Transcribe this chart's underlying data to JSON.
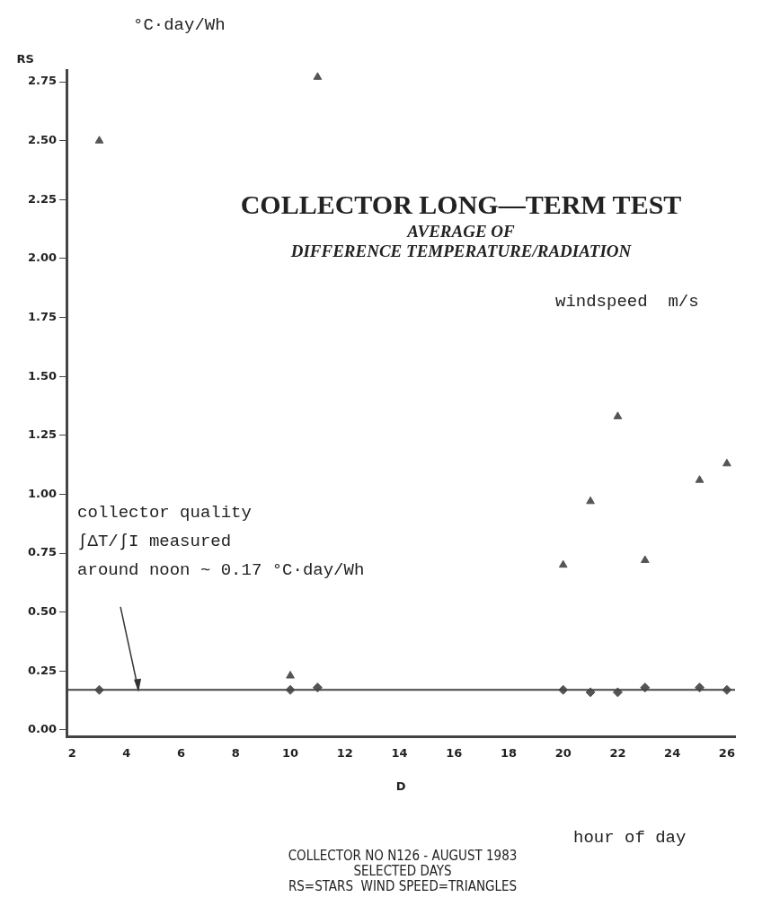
{
  "chart_data": {
    "type": "scatter",
    "title": "COLLECTOR LONG—TERM TEST",
    "subtitle": "AVERAGE OF\nDIFFERENCE TEMPERATURE/RADIATION",
    "xlabel": "D",
    "ylabel": "RS",
    "x": [
      3,
      10,
      11,
      20,
      21,
      22,
      23,
      25,
      26
    ],
    "series": [
      {
        "marker": "diamond",
        "color": "#555555",
        "values": [
          0.17,
          0.17,
          0.18,
          0.17,
          0.16,
          0.16,
          0.18,
          0.18,
          0.17
        ]
      },
      {
        "marker": "triangle",
        "color": "#555555",
        "values": [
          2.5,
          0.23,
          2.77,
          0.7,
          0.97,
          1.33,
          0.72,
          1.06,
          1.13
        ]
      }
    ],
    "xlim": [
      1.8,
      26.3
    ],
    "xticks": [
      2,
      4,
      6,
      8,
      10,
      12,
      14,
      16,
      18,
      20,
      22,
      24,
      26
    ],
    "ylim": [
      -0.03,
      2.8
    ],
    "yticks": [
      {
        "value": 0,
        "label": "0.00"
      },
      {
        "value": 0.25,
        "label": "0.25"
      },
      {
        "value": 0.5,
        "label": "0.50"
      },
      {
        "value": 0.75,
        "label": "0.75"
      },
      {
        "value": 1,
        "label": "1.00"
      },
      {
        "value": 1.25,
        "label": "1.25"
      },
      {
        "value": 1.5,
        "label": "1.50"
      },
      {
        "value": 1.75,
        "label": "1.75"
      },
      {
        "value": 2,
        "label": "2.00"
      },
      {
        "value": 2.25,
        "label": "2.25"
      },
      {
        "value": 2.5,
        "label": "2.50"
      },
      {
        "value": 2.75,
        "label": "2.75"
      }
    ],
    "ref_lines": [
      {
        "axis": "y",
        "value": 0.17,
        "color": "#444444"
      }
    ],
    "annotations": [
      "°C·day/Wh",
      "windspeed  m/s",
      "hour of day",
      "collector quality\n∫ΔT/∫I measured\naround noon ~ 0.17 °C·day/Wh",
      "COLLECTOR NO N126 - AUGUST 1983\nSELECTED DAYS\nRS=STARS  WIND SPEED=TRIANGLES"
    ],
    "grid": false,
    "legend": false
  }
}
